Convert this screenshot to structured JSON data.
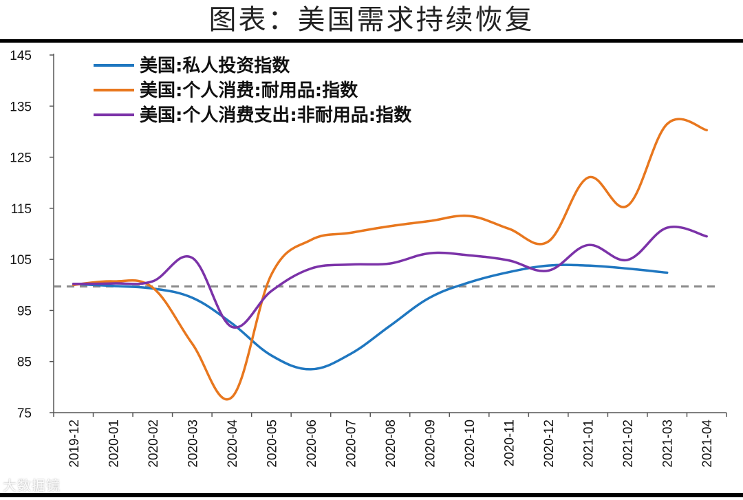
{
  "title": "图表：美国需求持续恢复",
  "watermark": "大数据镜",
  "chart_data": {
    "type": "line",
    "title": "图表：美国需求持续恢复",
    "xlabel": "",
    "ylabel": "",
    "ylim": [
      75,
      145
    ],
    "yticks": [
      75,
      85,
      95,
      105,
      115,
      125,
      135,
      145
    ],
    "categories": [
      "2019-12",
      "2020-01",
      "2020-02",
      "2020-03",
      "2020-04",
      "2020-05",
      "2020-06",
      "2020-07",
      "2020-08",
      "2020-09",
      "2020-10",
      "2020-11",
      "2020-12",
      "2021-01",
      "2021-02",
      "2021-03",
      "2021-04"
    ],
    "legend_position": "top-left",
    "reference_line": {
      "value": 99.7,
      "style": "dashed",
      "color": "#8a8a8a"
    },
    "series": [
      {
        "name": "美国:私人投资指数",
        "color": "#1f77c0",
        "values": [
          100.2,
          99.8,
          99.3,
          97.5,
          92.5,
          86.2,
          83.5,
          86.5,
          92.0,
          97.5,
          100.5,
          102.5,
          103.8,
          103.8,
          103.2,
          102.4,
          null
        ]
      },
      {
        "name": "美国:个人消费:耐用品:指数",
        "color": "#e8771e",
        "values": [
          100.0,
          100.7,
          99.5,
          88.5,
          78.0,
          102.0,
          108.8,
          110.2,
          111.5,
          112.5,
          113.5,
          111.0,
          108.5,
          121.0,
          115.5,
          131.5,
          130.3
        ]
      },
      {
        "name": "美国:个人消费支出:非耐用品:指数",
        "color": "#7b32a8",
        "values": [
          100.2,
          100.3,
          100.7,
          105.3,
          91.8,
          98.8,
          103.2,
          104.0,
          104.2,
          106.2,
          105.8,
          104.8,
          102.8,
          107.8,
          104.9,
          111.2,
          109.5
        ]
      }
    ]
  }
}
